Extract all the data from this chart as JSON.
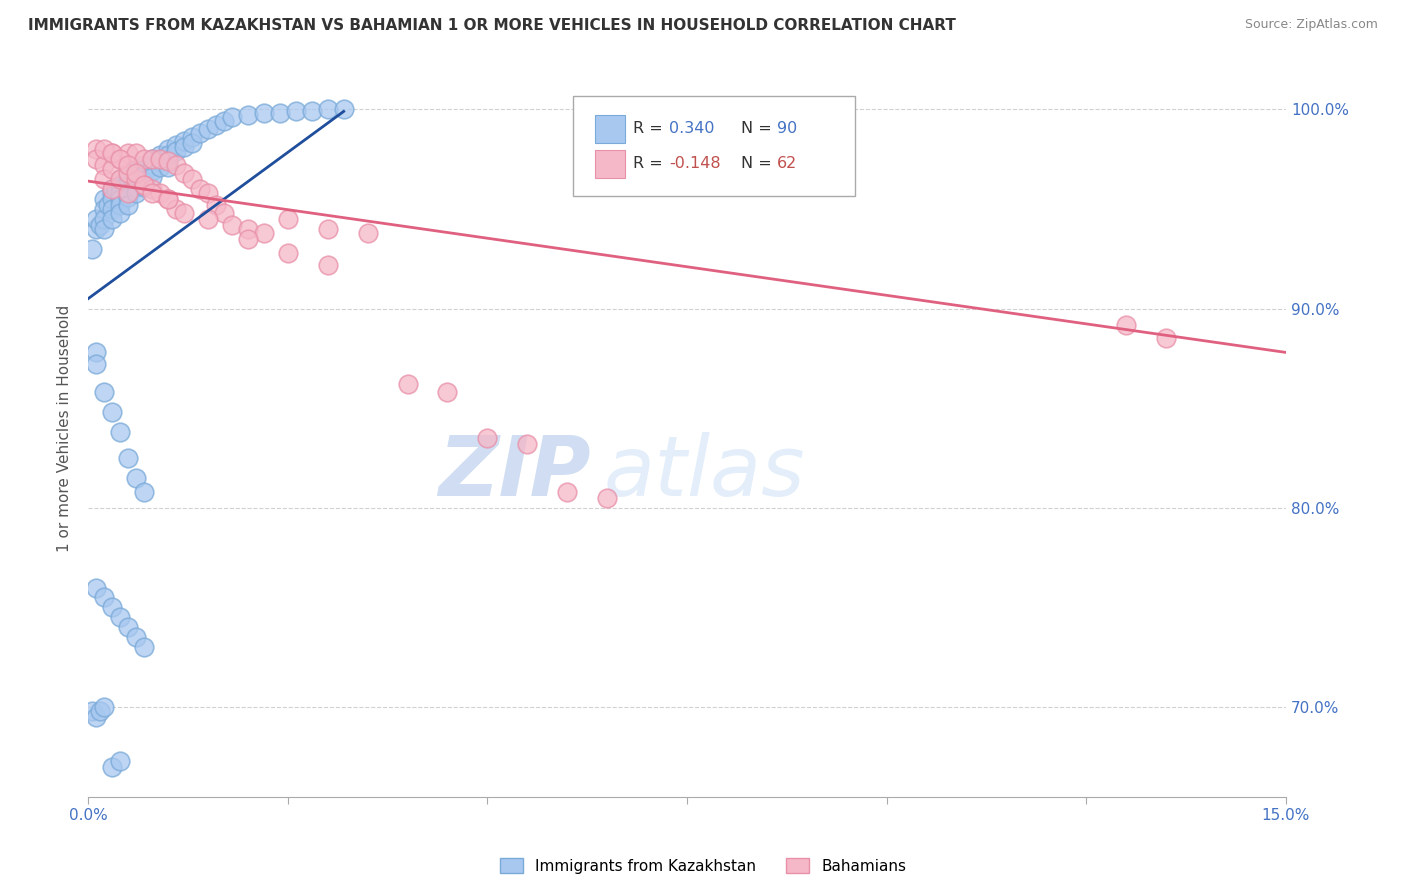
{
  "title": "IMMIGRANTS FROM KAZAKHSTAN VS BAHAMIAN 1 OR MORE VEHICLES IN HOUSEHOLD CORRELATION CHART",
  "source": "Source: ZipAtlas.com",
  "ylabel": "1 or more Vehicles in Household",
  "legend_label_blue": "Immigrants from Kazakhstan",
  "legend_label_pink": "Bahamians",
  "blue_color": "#A8C8F0",
  "pink_color": "#F5B8C8",
  "blue_edge_color": "#7AAAD8",
  "pink_edge_color": "#E890A8",
  "blue_line_color": "#1F4E9C",
  "pink_line_color": "#E06080",
  "r_blue_color": "#4472C4",
  "r_pink_color": "#C0504D",
  "watermark_zip": "ZIP",
  "watermark_atlas": "atlas",
  "xlim": [
    0.0,
    0.15
  ],
  "ylim": [
    0.655,
    1.025
  ],
  "blue_trend_x": [
    0.0,
    0.032
  ],
  "blue_trend_y": [
    0.905,
    0.999
  ],
  "pink_trend_x": [
    0.0,
    0.15
  ],
  "pink_trend_y": [
    0.964,
    0.878
  ],
  "blue_x": [
    0.0005,
    0.001,
    0.001,
    0.0015,
    0.002,
    0.002,
    0.002,
    0.002,
    0.0025,
    0.003,
    0.003,
    0.003,
    0.003,
    0.003,
    0.0035,
    0.004,
    0.004,
    0.004,
    0.004,
    0.004,
    0.004,
    0.005,
    0.005,
    0.005,
    0.005,
    0.005,
    0.005,
    0.006,
    0.006,
    0.006,
    0.006,
    0.006,
    0.007,
    0.007,
    0.007,
    0.007,
    0.007,
    0.008,
    0.008,
    0.008,
    0.008,
    0.009,
    0.009,
    0.009,
    0.01,
    0.01,
    0.01,
    0.01,
    0.011,
    0.011,
    0.012,
    0.012,
    0.013,
    0.013,
    0.014,
    0.015,
    0.016,
    0.017,
    0.018,
    0.02,
    0.022,
    0.024,
    0.026,
    0.028,
    0.03,
    0.032,
    0.001,
    0.001,
    0.002,
    0.003,
    0.004,
    0.005,
    0.006,
    0.007,
    0.0005,
    0.001,
    0.0015,
    0.002,
    0.003,
    0.004,
    0.001,
    0.002,
    0.003,
    0.004,
    0.005,
    0.006,
    0.007
  ],
  "blue_y": [
    0.93,
    0.94,
    0.945,
    0.942,
    0.955,
    0.95,
    0.945,
    0.94,
    0.952,
    0.96,
    0.958,
    0.955,
    0.95,
    0.945,
    0.96,
    0.965,
    0.962,
    0.958,
    0.955,
    0.952,
    0.948,
    0.968,
    0.965,
    0.962,
    0.959,
    0.956,
    0.952,
    0.97,
    0.967,
    0.964,
    0.961,
    0.958,
    0.972,
    0.97,
    0.967,
    0.964,
    0.961,
    0.975,
    0.972,
    0.969,
    0.966,
    0.977,
    0.974,
    0.971,
    0.98,
    0.977,
    0.974,
    0.971,
    0.982,
    0.979,
    0.984,
    0.981,
    0.986,
    0.983,
    0.988,
    0.99,
    0.992,
    0.994,
    0.996,
    0.997,
    0.998,
    0.998,
    0.999,
    0.999,
    1.0,
    1.0,
    0.878,
    0.872,
    0.858,
    0.848,
    0.838,
    0.825,
    0.815,
    0.808,
    0.698,
    0.695,
    0.698,
    0.7,
    0.67,
    0.673,
    0.76,
    0.755,
    0.75,
    0.745,
    0.74,
    0.735,
    0.73
  ],
  "pink_x": [
    0.001,
    0.001,
    0.002,
    0.002,
    0.003,
    0.003,
    0.003,
    0.004,
    0.004,
    0.005,
    0.005,
    0.005,
    0.006,
    0.006,
    0.007,
    0.007,
    0.008,
    0.008,
    0.009,
    0.009,
    0.01,
    0.01,
    0.011,
    0.011,
    0.012,
    0.013,
    0.014,
    0.015,
    0.016,
    0.017,
    0.018,
    0.02,
    0.022,
    0.002,
    0.003,
    0.004,
    0.005,
    0.006,
    0.007,
    0.025,
    0.03,
    0.035,
    0.008,
    0.01,
    0.012,
    0.015,
    0.04,
    0.045,
    0.05,
    0.055,
    0.06,
    0.065,
    0.02,
    0.025,
    0.03,
    0.13,
    0.135
  ],
  "pink_y": [
    0.98,
    0.975,
    0.972,
    0.965,
    0.978,
    0.97,
    0.96,
    0.975,
    0.965,
    0.978,
    0.968,
    0.958,
    0.978,
    0.965,
    0.975,
    0.962,
    0.975,
    0.96,
    0.975,
    0.958,
    0.974,
    0.955,
    0.972,
    0.95,
    0.968,
    0.965,
    0.96,
    0.958,
    0.952,
    0.948,
    0.942,
    0.94,
    0.938,
    0.98,
    0.978,
    0.975,
    0.972,
    0.968,
    0.962,
    0.945,
    0.94,
    0.938,
    0.958,
    0.955,
    0.948,
    0.945,
    0.862,
    0.858,
    0.835,
    0.832,
    0.808,
    0.805,
    0.935,
    0.928,
    0.922,
    0.892,
    0.885
  ]
}
